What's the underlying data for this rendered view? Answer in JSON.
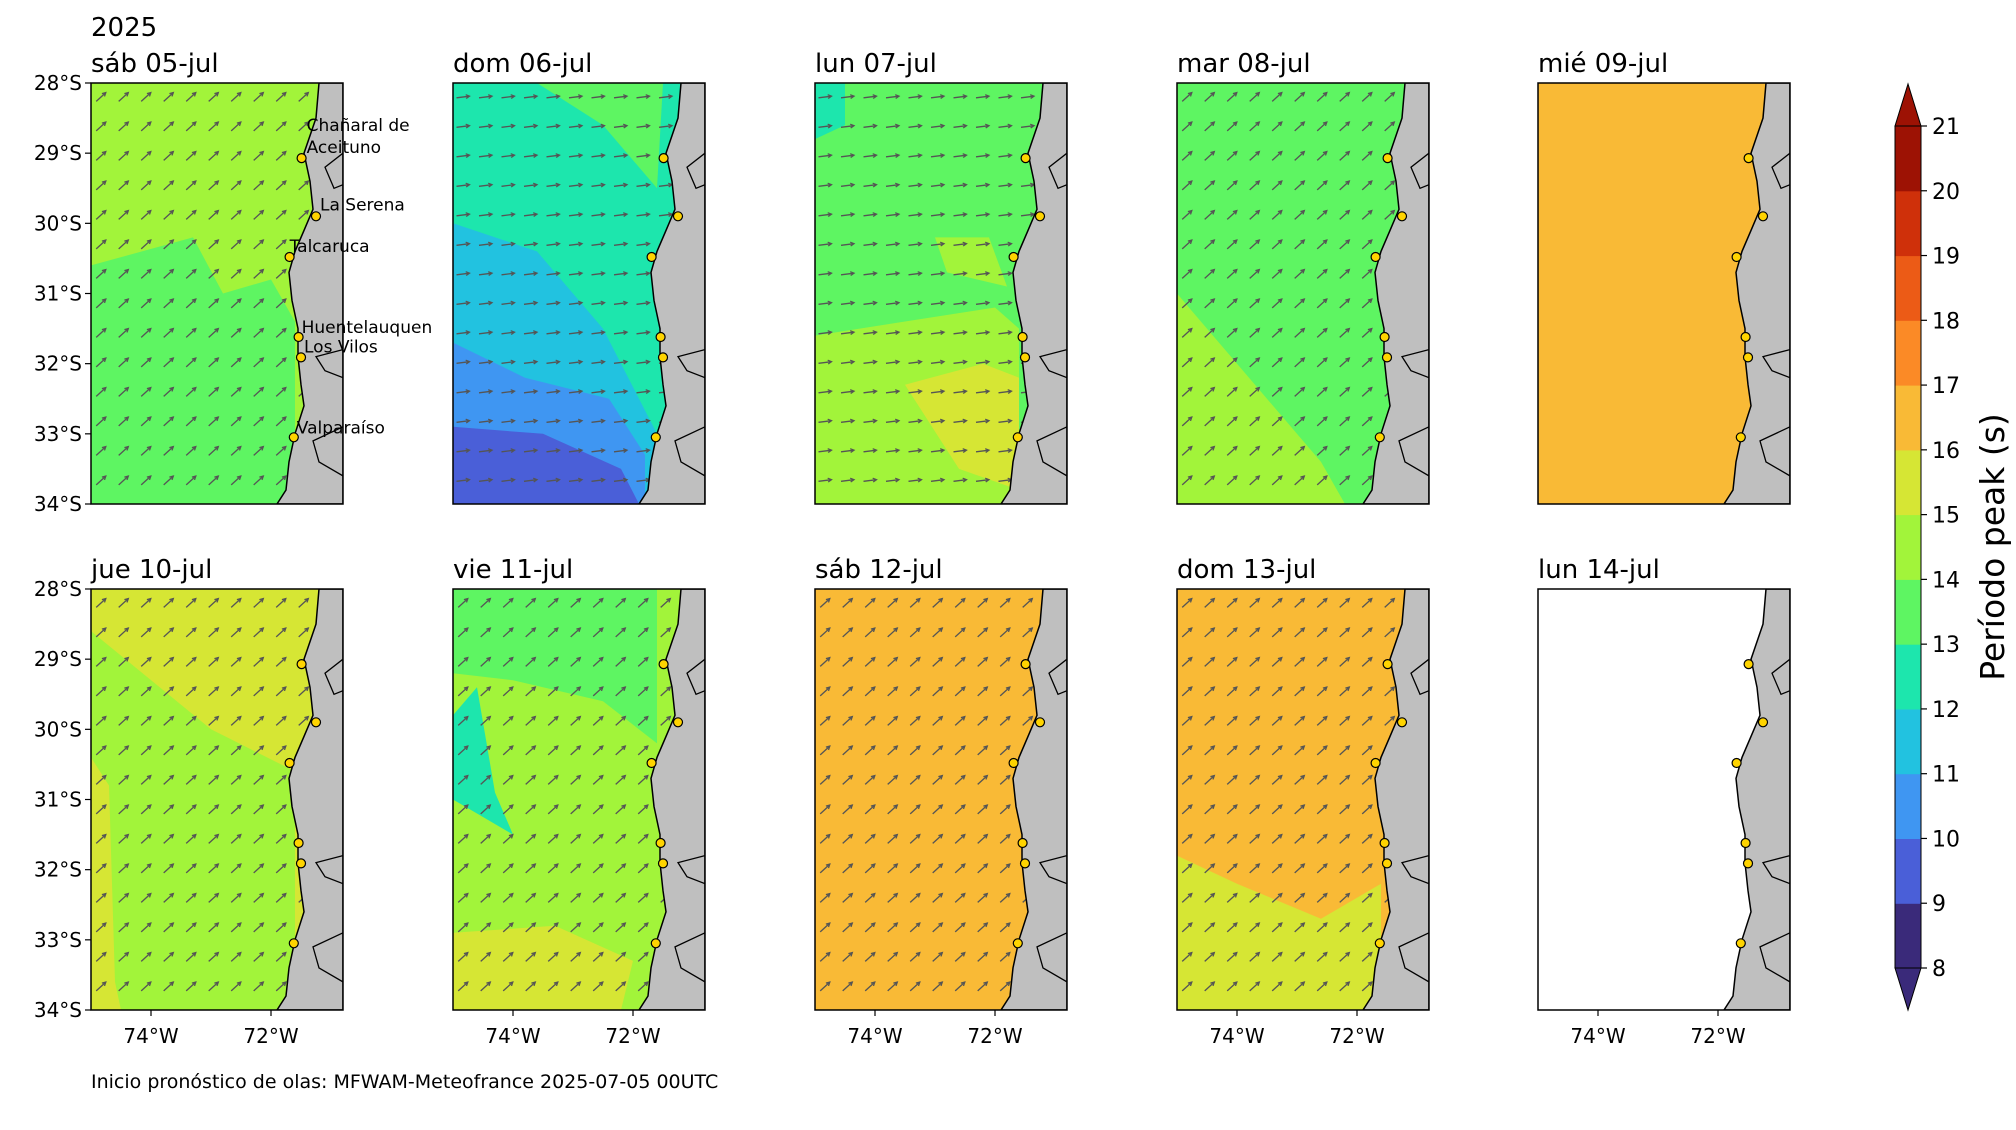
{
  "year": "2025",
  "footer": "Inicio pronóstico de olas: MFWAM-Meteofrance 2025-07-05 00UTC",
  "lat_labels": [
    "28°S",
    "29°S",
    "30°S",
    "31°S",
    "32°S",
    "33°S",
    "34°S"
  ],
  "lon_labels": [
    "74°W",
    "72°W"
  ],
  "extent": {
    "lon_min": -75.0,
    "lon_max": -70.8,
    "lat_min": -34.0,
    "lat_max": -28.0
  },
  "colors": {
    "land": "#bfbfbf",
    "coast": "#000000",
    "arrow": "#555555",
    "marker": "#ffd400"
  },
  "colorbar": {
    "label": "Período peak (s)",
    "ticks": [
      8,
      9,
      10,
      11,
      12,
      13,
      14,
      15,
      16,
      17,
      18,
      19,
      20,
      21
    ],
    "colors": [
      "#3a2a7a",
      "#4a5fd8",
      "#3f96f2",
      "#22c2e0",
      "#1de6ad",
      "#5ef562",
      "#a2f43a",
      "#d6e634",
      "#f9ba36",
      "#fb8a26",
      "#ec5b16",
      "#cf300a",
      "#9d1204"
    ]
  },
  "locations": [
    {
      "name": "Chañaral de Aceituno",
      "lat": -29.07,
      "lon": -71.49
    },
    {
      "name": "La Serena",
      "lat": -29.9,
      "lon": -71.25
    },
    {
      "name": "Talcaruca",
      "lat": -30.48,
      "lon": -71.69
    },
    {
      "name": "Huentelauquen",
      "lat": -31.62,
      "lon": -71.54
    },
    {
      "name": "Los Vilos",
      "lat": -31.91,
      "lon": -71.5
    },
    {
      "name": "Valparaíso",
      "lat": -33.05,
      "lon": -71.62
    }
  ],
  "panels": [
    {
      "title": "sáb 05-jul",
      "base_period": 14,
      "zones": [
        {
          "period": 13,
          "poly": [
            [
              -75,
              -30.6
            ],
            [
              -73.3,
              -30.2
            ],
            [
              -72.8,
              -31.0
            ],
            [
              -72.0,
              -30.8
            ],
            [
              -71.6,
              -31.4
            ],
            [
              -71.6,
              -34
            ],
            [
              -75,
              -34
            ]
          ]
        }
      ],
      "arrow_dir": "NE"
    },
    {
      "title": "dom 06-jul",
      "base_period": 12,
      "zones": [
        {
          "period": 11,
          "poly": [
            [
              -75,
              -30.0
            ],
            [
              -73.6,
              -30.4
            ],
            [
              -72.5,
              -31.5
            ],
            [
              -71.6,
              -33.0
            ],
            [
              -71.6,
              -34
            ],
            [
              -75,
              -34
            ]
          ]
        },
        {
          "period": 10,
          "poly": [
            [
              -75,
              -31.7
            ],
            [
              -73.8,
              -32.2
            ],
            [
              -72.4,
              -32.5
            ],
            [
              -71.8,
              -33.3
            ],
            [
              -71.8,
              -34
            ],
            [
              -75,
              -34
            ]
          ]
        },
        {
          "period": 9,
          "poly": [
            [
              -75,
              -32.9
            ],
            [
              -73.5,
              -33.0
            ],
            [
              -72.2,
              -33.5
            ],
            [
              -71.9,
              -34
            ],
            [
              -75,
              -34
            ]
          ]
        },
        {
          "period": 13,
          "poly": [
            [
              -73.6,
              -28
            ],
            [
              -71.5,
              -28
            ],
            [
              -71.6,
              -29.5
            ],
            [
              -72.5,
              -28.6
            ]
          ]
        }
      ],
      "arrow_dir": "E"
    },
    {
      "title": "lun 07-jul",
      "base_period": 13,
      "zones": [
        {
          "period": 14,
          "poly": [
            [
              -75,
              -31.6
            ],
            [
              -72.0,
              -31.2
            ],
            [
              -71.6,
              -31.5
            ],
            [
              -71.6,
              -34
            ],
            [
              -75,
              -34
            ]
          ]
        },
        {
          "period": 15,
          "poly": [
            [
              -73.5,
              -32.3
            ],
            [
              -72.2,
              -32.0
            ],
            [
              -71.6,
              -32.2
            ],
            [
              -71.6,
              -33.8
            ],
            [
              -72.6,
              -33.5
            ]
          ]
        },
        {
          "period": 14,
          "poly": [
            [
              -73.0,
              -30.2
            ],
            [
              -72.1,
              -30.2
            ],
            [
              -71.8,
              -30.9
            ],
            [
              -72.8,
              -30.7
            ]
          ]
        },
        {
          "period": 12,
          "poly": [
            [
              -75,
              -28
            ],
            [
              -74.5,
              -28
            ],
            [
              -74.5,
              -28.6
            ],
            [
              -75,
              -28.8
            ]
          ]
        }
      ],
      "arrow_dir": "E"
    },
    {
      "title": "mar 08-jul",
      "base_period": 13,
      "zones": [
        {
          "period": 14,
          "poly": [
            [
              -75,
              -31.0
            ],
            [
              -74.7,
              -31.3
            ],
            [
              -72.6,
              -33.4
            ],
            [
              -72.2,
              -34
            ],
            [
              -75,
              -34
            ]
          ]
        }
      ],
      "arrow_dir": "NE"
    },
    {
      "title": "mié 09-jul",
      "base_period": 16,
      "zones": [],
      "arrow_dir": "none"
    },
    {
      "title": "jue 10-jul",
      "base_period": 15,
      "zones": [
        {
          "period": 14,
          "poly": [
            [
              -75,
              -28.6
            ],
            [
              -73.0,
              -30.0
            ],
            [
              -71.6,
              -30.6
            ],
            [
              -71.6,
              -34
            ],
            [
              -74.5,
              -34
            ],
            [
              -74.6,
              -33.6
            ],
            [
              -74.7,
              -30.8
            ],
            [
              -75,
              -30.4
            ]
          ]
        }
      ],
      "arrow_dir": "NE"
    },
    {
      "title": "vie 11-jul",
      "base_period": 14,
      "zones": [
        {
          "period": 13,
          "poly": [
            [
              -75,
              -28
            ],
            [
              -71.6,
              -28
            ],
            [
              -71.6,
              -30.2
            ],
            [
              -72.5,
              -29.6
            ],
            [
              -74.0,
              -29.3
            ],
            [
              -75,
              -29.2
            ]
          ]
        },
        {
          "period": 12,
          "poly": [
            [
              -75,
              -29.8
            ],
            [
              -74.6,
              -29.4
            ],
            [
              -74.3,
              -30.9
            ],
            [
              -74.0,
              -31.5
            ],
            [
              -74.6,
              -31.2
            ],
            [
              -75,
              -31.0
            ]
          ]
        },
        {
          "period": 15,
          "poly": [
            [
              -75,
              -32.9
            ],
            [
              -73.3,
              -32.8
            ],
            [
              -72.0,
              -33.3
            ],
            [
              -72.2,
              -34
            ],
            [
              -75,
              -34
            ]
          ]
        }
      ],
      "arrow_dir": "NE"
    },
    {
      "title": "sáb 12-jul",
      "base_period": 16,
      "zones": [],
      "arrow_dir": "NE"
    },
    {
      "title": "dom 13-jul",
      "base_period": 16,
      "zones": [
        {
          "period": 15,
          "poly": [
            [
              -75,
              -31.8
            ],
            [
              -74.0,
              -32.2
            ],
            [
              -72.6,
              -32.7
            ],
            [
              -71.6,
              -32.2
            ],
            [
              -71.6,
              -34
            ],
            [
              -75,
              -34
            ]
          ]
        }
      ],
      "arrow_dir": "NE"
    },
    {
      "title": "lun 14-jul",
      "base_period": null,
      "zones": [],
      "arrow_dir": "none"
    }
  ]
}
